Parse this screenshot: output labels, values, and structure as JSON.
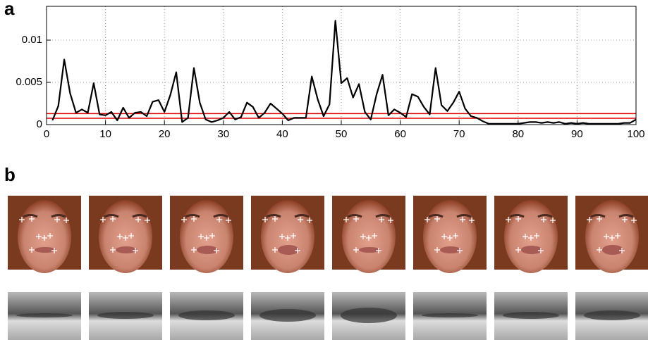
{
  "panel_labels": [
    "a",
    "b"
  ],
  "chart_data": {
    "type": "line",
    "x": [
      1,
      2,
      3,
      4,
      5,
      6,
      7,
      8,
      9,
      10,
      11,
      12,
      13,
      14,
      15,
      16,
      17,
      18,
      19,
      20,
      21,
      22,
      23,
      24,
      25,
      26,
      27,
      28,
      29,
      30,
      31,
      32,
      33,
      34,
      35,
      36,
      37,
      38,
      39,
      40,
      41,
      42,
      43,
      44,
      45,
      46,
      47,
      48,
      49,
      50,
      51,
      52,
      53,
      54,
      55,
      56,
      57,
      58,
      59,
      60,
      61,
      62,
      63,
      64,
      65,
      66,
      67,
      68,
      69,
      70,
      71,
      72,
      73,
      74,
      75,
      76,
      77,
      78,
      79,
      80,
      81,
      82,
      83,
      84,
      85,
      86,
      87,
      88,
      89,
      90,
      91,
      92,
      93,
      94,
      95,
      96,
      97,
      98,
      99,
      100
    ],
    "series": [
      {
        "color": "#000000",
        "values": [
          0.0005,
          0.0022,
          0.0077,
          0.0037,
          0.0014,
          0.0018,
          0.0014,
          0.0049,
          0.0012,
          0.0011,
          0.0015,
          0.0005,
          0.002,
          0.0008,
          0.0014,
          0.0015,
          0.001,
          0.0027,
          0.0029,
          0.0015,
          0.0035,
          0.0062,
          0.0003,
          0.0008,
          0.0067,
          0.0026,
          0.0006,
          0.0003,
          0.0005,
          0.0008,
          0.0015,
          0.0006,
          0.0009,
          0.0026,
          0.0021,
          0.0008,
          0.0014,
          0.0025,
          0.0019,
          0.0013,
          0.0005,
          0.0008,
          0.0008,
          0.0008,
          0.0057,
          0.003,
          0.001,
          0.0024,
          0.0123,
          0.0049,
          0.0055,
          0.0032,
          0.0048,
          0.0015,
          0.0006,
          0.0036,
          0.0059,
          0.0011,
          0.0018,
          0.0014,
          0.0009,
          0.0036,
          0.0033,
          0.0021,
          0.0012,
          0.0067,
          0.0023,
          0.0016,
          0.0026,
          0.0039,
          0.0019,
          0.001,
          0.0008,
          0.0004,
          0.0001,
          0.0001,
          0.0001,
          0.0001,
          0.0001,
          0.0001,
          0.0002,
          0.0003,
          0.0003,
          0.0002,
          0.0003,
          0.0002,
          0.0003,
          0.0001,
          0.0002,
          0.0001,
          0.0002,
          0.0001,
          0.0001,
          0.0001,
          0.0001,
          0.0001,
          0.0001,
          0.0002,
          0.0002,
          0.0006
        ]
      }
    ],
    "reference_lines": [
      {
        "value": 0.00075,
        "color": "#e00000"
      },
      {
        "value": 0.0013,
        "color": "#e00000"
      }
    ],
    "xlim": [
      0,
      100
    ],
    "xticks": [
      0,
      10,
      20,
      30,
      40,
      50,
      60,
      70,
      80,
      90,
      100
    ],
    "ylim": [
      0,
      0.014
    ],
    "yticks": [
      0,
      0.005,
      0.01
    ],
    "grid": true
  }
}
